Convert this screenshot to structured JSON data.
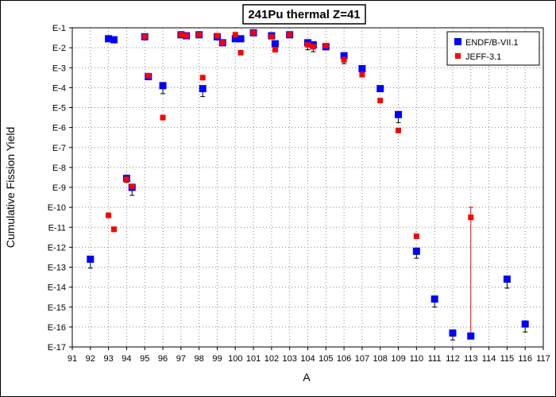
{
  "chart_data": {
    "type": "scatter",
    "title": "241Pu thermal Z=41",
    "xlabel": "A",
    "ylabel": "Cumulative Fission Yield",
    "xlim": [
      91,
      117
    ],
    "ylim_exp": [
      -17,
      -1
    ],
    "log_scale_y": true,
    "grid": true,
    "legend_position": "top-right",
    "x_ticks": [
      "91",
      "92",
      "93",
      "94",
      "95",
      "96",
      "97",
      "98",
      "99",
      "100",
      "101",
      "102",
      "103",
      "104",
      "105",
      "106",
      "107",
      "108",
      "109",
      "110",
      "111",
      "112",
      "113",
      "114",
      "115",
      "116",
      "117"
    ],
    "y_ticks": [
      "E-1",
      "E-2",
      "E-3",
      "E-4",
      "E-5",
      "E-6",
      "E-7",
      "E-8",
      "E-9",
      "E-10",
      "E-11",
      "E-12",
      "E-13",
      "E-14",
      "E-15",
      "E-16",
      "E-17"
    ],
    "series": [
      {
        "name": "ENDF/B-VII.1",
        "color": "#0000ff",
        "marker": "square",
        "points": [
          {
            "x": 92,
            "y": -12.6,
            "err": 0.45
          },
          {
            "x": 93,
            "y": -1.55,
            "err": 0.05
          },
          {
            "x": 93.3,
            "y": -1.6,
            "err": 0.05
          },
          {
            "x": 94,
            "y": -8.55,
            "err": 0.2
          },
          {
            "x": 94.3,
            "y": -9.0,
            "err": 0.4
          },
          {
            "x": 95,
            "y": -1.45,
            "err": 0.05
          },
          {
            "x": 95.2,
            "y": -3.45,
            "err": 0.05
          },
          {
            "x": 96,
            "y": -3.9,
            "err": 0.4
          },
          {
            "x": 97,
            "y": -1.35,
            "err": 0.05
          },
          {
            "x": 97.3,
            "y": -1.4,
            "err": 0.05
          },
          {
            "x": 98,
            "y": -1.35,
            "err": 0.05
          },
          {
            "x": 98.2,
            "y": -4.05,
            "err": 0.4
          },
          {
            "x": 99,
            "y": -1.45,
            "err": 0.05
          },
          {
            "x": 99.3,
            "y": -1.75,
            "err": 0.1
          },
          {
            "x": 100,
            "y": -1.55,
            "err": 0.1
          },
          {
            "x": 100.3,
            "y": -1.55,
            "err": 0.05
          },
          {
            "x": 101,
            "y": -1.25,
            "err": 0.05
          },
          {
            "x": 102,
            "y": -1.4,
            "err": 0.1
          },
          {
            "x": 102.2,
            "y": -1.8,
            "err": 0.3
          },
          {
            "x": 103,
            "y": -1.35,
            "err": 0.05
          },
          {
            "x": 104,
            "y": -1.75,
            "err": 0.35
          },
          {
            "x": 104.3,
            "y": -1.85,
            "err": 0.35
          },
          {
            "x": 105,
            "y": -1.95,
            "err": 0.1
          },
          {
            "x": 106,
            "y": -2.4,
            "err": 0.4
          },
          {
            "x": 107,
            "y": -3.05,
            "err": 0.2
          },
          {
            "x": 108,
            "y": -4.05,
            "err": 0.1
          },
          {
            "x": 109,
            "y": -5.35,
            "err": 0.4
          },
          {
            "x": 110,
            "y": -12.2,
            "err": 0.35
          },
          {
            "x": 111,
            "y": -14.6,
            "err": 0.4
          },
          {
            "x": 112,
            "y": -16.3,
            "err": 0.35
          },
          {
            "x": 113,
            "y": -16.45,
            "err": 0.05
          },
          {
            "x": 115,
            "y": -13.6,
            "err": 0.45
          },
          {
            "x": 116,
            "y": -15.85,
            "err": 0.4
          }
        ]
      },
      {
        "name": "JEFF-3.1",
        "color": "#ff0000",
        "marker": "square",
        "points": [
          {
            "x": 93,
            "y": -10.4,
            "err": 0
          },
          {
            "x": 93.3,
            "y": -11.1,
            "err": 0
          },
          {
            "x": 94,
            "y": -8.6,
            "err": 0
          },
          {
            "x": 94.3,
            "y": -8.95,
            "err": 0
          },
          {
            "x": 95,
            "y": -1.45,
            "err": 0
          },
          {
            "x": 95.2,
            "y": -3.4,
            "err": 0
          },
          {
            "x": 96,
            "y": -5.5,
            "err": 0
          },
          {
            "x": 97,
            "y": -1.35,
            "err": 0
          },
          {
            "x": 97.3,
            "y": -1.4,
            "err": 0
          },
          {
            "x": 98,
            "y": -1.35,
            "err": 0
          },
          {
            "x": 98.2,
            "y": -3.5,
            "err": 0
          },
          {
            "x": 99,
            "y": -1.4,
            "err": 0
          },
          {
            "x": 99.3,
            "y": -1.75,
            "err": 0
          },
          {
            "x": 100,
            "y": -1.35,
            "err": 0
          },
          {
            "x": 100.3,
            "y": -2.25,
            "err": 0
          },
          {
            "x": 101,
            "y": -1.25,
            "err": 0
          },
          {
            "x": 102,
            "y": -1.45,
            "err": 0
          },
          {
            "x": 102.2,
            "y": -2.1,
            "err": 0
          },
          {
            "x": 103,
            "y": -1.35,
            "err": 0
          },
          {
            "x": 104,
            "y": -1.85,
            "err": 0
          },
          {
            "x": 104.3,
            "y": -1.95,
            "err": 0
          },
          {
            "x": 105,
            "y": -1.9,
            "err": 0
          },
          {
            "x": 106,
            "y": -2.6,
            "err": 0
          },
          {
            "x": 107,
            "y": -3.35,
            "err": 0
          },
          {
            "x": 108,
            "y": -4.65,
            "err": 0
          },
          {
            "x": 109,
            "y": -6.15,
            "err": 0
          },
          {
            "x": 110,
            "y": -11.45,
            "err": 0
          },
          {
            "x": 113,
            "y": -10.5,
            "err": 0,
            "errbar_low": -16.45,
            "errbar_high": -10.0
          }
        ]
      }
    ]
  }
}
